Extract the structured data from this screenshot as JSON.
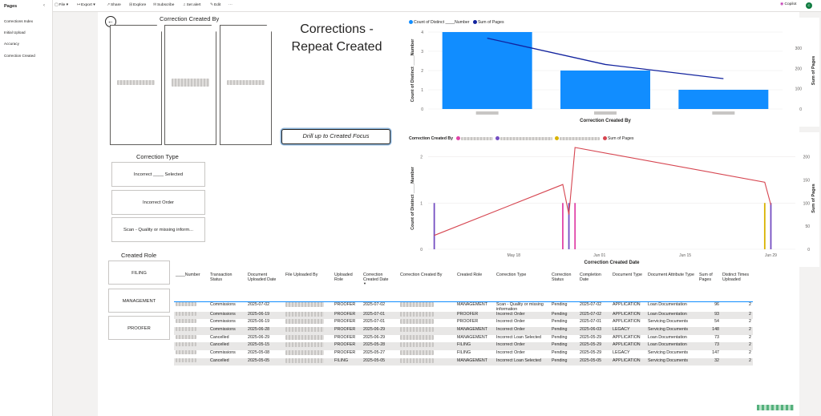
{
  "pages_pane": {
    "title": "Pages",
    "items": [
      "Corrections Index",
      "Initial Upload",
      "Accuracy",
      "Correction Created"
    ]
  },
  "toolbar": {
    "file": "File",
    "export": "Export",
    "share": "Share",
    "explore": "Explore",
    "subscribe": "Subscribe",
    "set_alert": "Set alert",
    "edit": "Edit",
    "more": "···",
    "copilot": "Copilot",
    "avatar_initial": "C"
  },
  "report": {
    "big_title": "Corrections - Repeat Created",
    "cards_title": "Correction Created By",
    "drill_label": "Drill up to Created Focus",
    "correction_type_title": "Correction Type",
    "correction_types": [
      "Incorrect ____ Selected",
      "Incorrect Order",
      "Scan - Quality or missing inform..."
    ],
    "created_role_title": "Created Role",
    "roles": [
      "FILING",
      "MANAGEMENT",
      "PROOFER"
    ]
  },
  "colors": {
    "bar": "#118dff",
    "sum_line": "#12239e",
    "series_pink": "#e044a7",
    "series_purple": "#744ec2",
    "series_yellow": "#d9b300",
    "series_red": "#d64550"
  },
  "chart_data": [
    {
      "type": "bar",
      "legend": [
        "Count of Distinct ____Number",
        "Sum of Pages"
      ],
      "categories": [
        "",
        "",
        ""
      ],
      "values": [
        4,
        2,
        1
      ],
      "line_values": [
        350,
        220,
        150
      ],
      "xlabel": "Correction Created By",
      "ylabel": "Count of Distinct ____Number",
      "y2label": "Sum of Pages",
      "ylim": [
        0,
        4
      ],
      "y2lim": [
        0,
        380
      ],
      "yticks": [
        "0",
        "1",
        "2",
        "3",
        "4"
      ],
      "y2ticks": [
        "0",
        "100",
        "200",
        "300"
      ]
    },
    {
      "type": "line",
      "legend_title": "Correction Created By",
      "legend_extra": "Sum of Pages",
      "xlabel": "Correction Created Date",
      "ylabel": "Count of Distinct ____Number",
      "y2label": "Sum of Pages",
      "xticks": [
        "May 18",
        "Jun 01",
        "Jun 15",
        "Jun 29"
      ],
      "yticks": [
        "0",
        "1",
        "2"
      ],
      "y2ticks": [
        "0",
        "50",
        "100",
        "150",
        "200"
      ],
      "ylim": [
        0,
        2.2
      ],
      "y2lim": [
        0,
        220
      ],
      "series": [
        {
          "color_key": "series_purple",
          "x": [
            "2025-05-05",
            "2025-05-27",
            "2025-06-29"
          ],
          "values": [
            1,
            1,
            1
          ]
        },
        {
          "color_key": "series_pink",
          "x": [
            "2025-05-26",
            "2025-05-28"
          ],
          "values": [
            1,
            1
          ]
        },
        {
          "color_key": "series_yellow",
          "x": [
            "2025-06-28"
          ],
          "values": [
            1
          ]
        },
        {
          "name": "Sum of Pages",
          "color_key": "series_red",
          "x": [
            "2025-05-05",
            "2025-05-26",
            "2025-05-27",
            "2025-05-28",
            "2025-06-28",
            "2025-06-29"
          ],
          "values": [
            30,
            140,
            75,
            220,
            145,
            96
          ]
        }
      ]
    }
  ],
  "table": {
    "headers": [
      "____Number",
      "Transaction Status",
      "Document Uploaded Date",
      "File Uploaded By",
      "Uploaded Role",
      "Correction Created Date",
      "Correction Created By",
      "Created Role",
      "Correction Type",
      "Correction Status",
      "Completion Date",
      "Document Type",
      "Document Attribute Type",
      "Sum of Pages",
      "Distinct Times Uploaded"
    ],
    "rows": [
      [
        "",
        "Commissions",
        "2025-07-02",
        "",
        "PROOFER",
        "2025-07-02",
        "",
        "MANAGEMENT",
        "Scan - Quality or missing information",
        "Pending",
        "2025-07-02",
        "APPLICATION",
        "Loan Documentation",
        "96",
        "2"
      ],
      [
        "",
        "Commissions",
        "2025-06-19",
        "",
        "PROOFER",
        "2025-07-01",
        "",
        "PROOFER",
        "Incorrect Order",
        "Pending",
        "2025-07-02",
        "APPLICATION",
        "Loan Documentation",
        "93",
        "2"
      ],
      [
        "",
        "Commissions",
        "2025-06-19",
        "",
        "PROOFER",
        "2025-07-01",
        "",
        "PROOFER",
        "Incorrect Order",
        "Pending",
        "2025-07-01",
        "APPLICATION",
        "Servicing Documents",
        "54",
        "2"
      ],
      [
        "",
        "Commissions",
        "2025-06-28",
        "",
        "PROOFER",
        "2025-06-29",
        "",
        "MANAGEMENT",
        "Incorrect Order",
        "Pending",
        "2025-06-03",
        "LEGACY",
        "Servicing Documents",
        "148",
        "2"
      ],
      [
        "",
        "Cancelled",
        "2025-06-29",
        "",
        "PROOFER",
        "2025-06-29",
        "",
        "MANAGEMENT",
        "Incorrect Loan Selected",
        "Pending",
        "2025-05-29",
        "APPLICATION",
        "Loan Documentation",
        "73",
        "2"
      ],
      [
        "",
        "Cancelled",
        "2025-05-15",
        "",
        "PROOFER",
        "2025-05-28",
        "",
        "FILING",
        "Incorrect Order",
        "Pending",
        "2025-05-29",
        "APPLICATION",
        "Loan Documentation",
        "73",
        "2"
      ],
      [
        "",
        "Commissions",
        "2025-05-08",
        "",
        "PROOFER",
        "2025-05-27",
        "",
        "FILING",
        "Incorrect Order",
        "Pending",
        "2025-05-29",
        "LEGACY",
        "Servicing Documents",
        "147",
        "2"
      ],
      [
        "",
        "Cancelled",
        "2025-05-05",
        "",
        "FILING",
        "2025-05-05",
        "",
        "MANAGEMENT",
        "Incorrect Loan Selected",
        "Pending",
        "2025-05-05",
        "APPLICATION",
        "Servicing Documents",
        "32",
        "2"
      ]
    ]
  }
}
